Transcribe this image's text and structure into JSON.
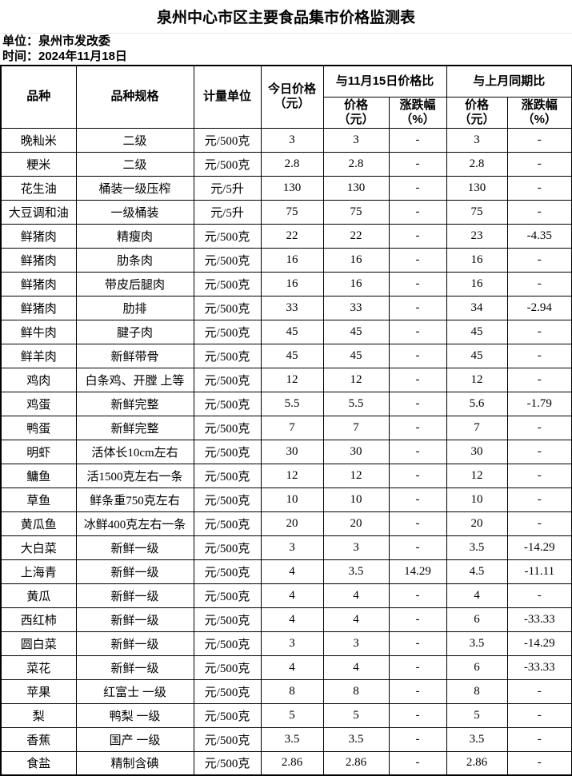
{
  "page": {
    "title": "泉州中心市区主要食品集市价格监测表",
    "unit_line": "单位：泉州市发改委",
    "date_line": "时间：2024年11月18日"
  },
  "colors": {
    "text": "#000000",
    "table_border": "#000000",
    "background": "#ffffff",
    "gridline": "#e8e8e8"
  },
  "table": {
    "columns": {
      "variety": "品种",
      "spec": "品种规格",
      "unit": "计量单位",
      "today_price": "今日价格\n（元）",
      "vs_nov15_group": "与11月15日价格比",
      "vs_last_month_group": "与上月同期比",
      "price": "价格\n（元）",
      "change": "涨跌幅\n（%）"
    },
    "rows": [
      [
        "晚籼米",
        "二级",
        "元/500克",
        "3",
        "3",
        "-",
        "3",
        "-"
      ],
      [
        "粳米",
        "二级",
        "元/500克",
        "2.8",
        "2.8",
        "-",
        "2.8",
        "-"
      ],
      [
        "花生油",
        "桶装一级压榨",
        "元/5升",
        "130",
        "130",
        "-",
        "130",
        "-"
      ],
      [
        "大豆调和油",
        "一级桶装",
        "元/5升",
        "75",
        "75",
        "-",
        "75",
        "-"
      ],
      [
        "鲜猪肉",
        "精瘦肉",
        "元/500克",
        "22",
        "22",
        "-",
        "23",
        "-4.35"
      ],
      [
        "鲜猪肉",
        "肋条肉",
        "元/500克",
        "16",
        "16",
        "-",
        "16",
        "-"
      ],
      [
        "鲜猪肉",
        "带皮后腿肉",
        "元/500克",
        "16",
        "16",
        "-",
        "16",
        "-"
      ],
      [
        "鲜猪肉",
        "肋排",
        "元/500克",
        "33",
        "33",
        "-",
        "34",
        "-2.94"
      ],
      [
        "鲜牛肉",
        "腱子肉",
        "元/500克",
        "45",
        "45",
        "-",
        "45",
        "-"
      ],
      [
        "鲜羊肉",
        "新鲜带骨",
        "元/500克",
        "45",
        "45",
        "-",
        "45",
        "-"
      ],
      [
        "鸡肉",
        "白条鸡、开膛 上等",
        "元/500克",
        "12",
        "12",
        "-",
        "12",
        "-"
      ],
      [
        "鸡蛋",
        "新鲜完整",
        "元/500克",
        "5.5",
        "5.5",
        "-",
        "5.6",
        "-1.79"
      ],
      [
        "鸭蛋",
        "新鲜完整",
        "元/500克",
        "7",
        "7",
        "-",
        "7",
        "-"
      ],
      [
        "明虾",
        "活体长10cm左右",
        "元/500克",
        "30",
        "30",
        "-",
        "30",
        "-"
      ],
      [
        "鳙鱼",
        "活1500克左右一条",
        "元/500克",
        "12",
        "12",
        "-",
        "12",
        "-"
      ],
      [
        "草鱼",
        "鲜条重750克左右",
        "元/500克",
        "10",
        "10",
        "-",
        "10",
        "-"
      ],
      [
        "黄瓜鱼",
        "冰鲜400克左右一条",
        "元/500克",
        "20",
        "20",
        "-",
        "20",
        "-"
      ],
      [
        "大白菜",
        "新鲜一级",
        "元/500克",
        "3",
        "3",
        "-",
        "3.5",
        "-14.29"
      ],
      [
        "上海青",
        "新鲜一级",
        "元/500克",
        "4",
        "3.5",
        "14.29",
        "4.5",
        "-11.11"
      ],
      [
        "黄瓜",
        "新鲜一级",
        "元/500克",
        "4",
        "4",
        "-",
        "4",
        "-"
      ],
      [
        "西红柿",
        "新鲜一级",
        "元/500克",
        "4",
        "4",
        "-",
        "6",
        "-33.33"
      ],
      [
        "圆白菜",
        "新鲜一级",
        "元/500克",
        "3",
        "3",
        "-",
        "3.5",
        "-14.29"
      ],
      [
        "菜花",
        "新鲜一级",
        "元/500克",
        "4",
        "4",
        "-",
        "6",
        "-33.33"
      ],
      [
        "苹果",
        "红富士 一级",
        "元/500克",
        "8",
        "8",
        "-",
        "8",
        "-"
      ],
      [
        "梨",
        "鸭梨 一级",
        "元/500克",
        "5",
        "5",
        "-",
        "5",
        "-"
      ],
      [
        "香蕉",
        "国产 一级",
        "元/500克",
        "3.5",
        "3.5",
        "-",
        "3.5",
        "-"
      ],
      [
        "食盐",
        "精制含碘",
        "元/500克",
        "2.86",
        "2.86",
        "-",
        "2.86",
        "-"
      ]
    ]
  }
}
